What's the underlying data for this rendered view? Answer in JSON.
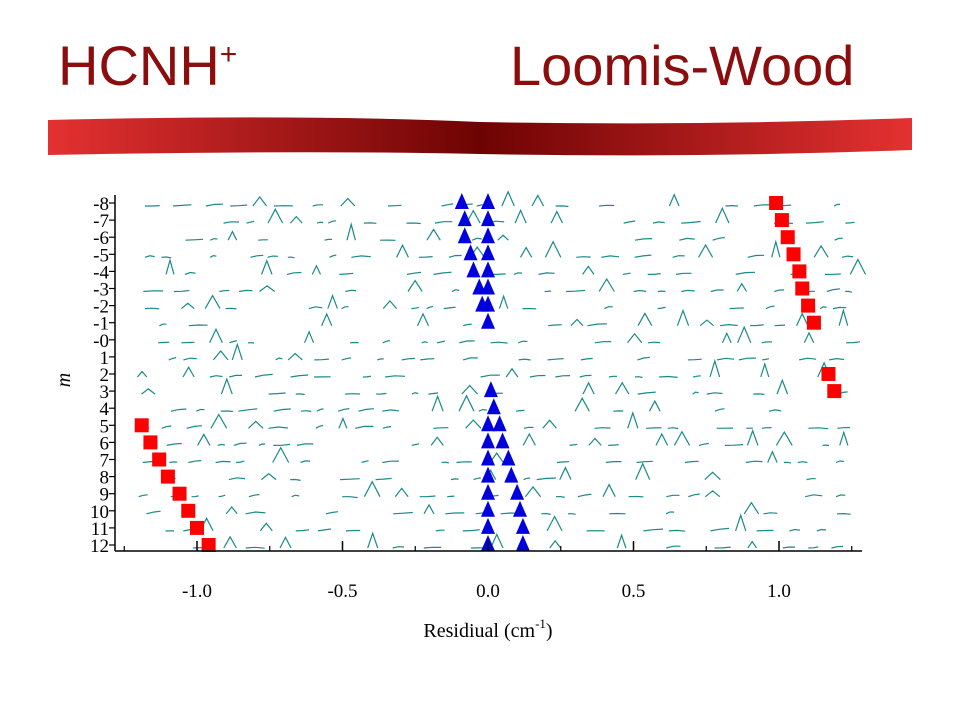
{
  "slide": {
    "title_left_main": "HCNH",
    "title_left_sup": "+",
    "title_right": "Loomis-Wood",
    "accent_color": "#8b0d0d"
  },
  "chart_data": {
    "type": "scatter",
    "title": "",
    "xlabel": "Residiual (cm",
    "xlabel_sup": "-1",
    "xlabel_close": ")",
    "ylabel": "m",
    "xlim": [
      -1.3,
      1.3
    ],
    "x_ticks": [
      -1.0,
      -0.5,
      0.0,
      0.5,
      1.0
    ],
    "x_tick_labels": [
      "-1.0",
      "-0.5",
      "0.0",
      "0.5",
      "1.0"
    ],
    "m_rows": [
      "-8",
      "-7",
      "-6",
      "-5",
      "-4",
      "-3",
      "-2",
      "-1",
      "-0",
      "1",
      "2",
      "3",
      "4",
      "5",
      "6",
      "7",
      "8",
      "9",
      "10",
      "11",
      "12"
    ],
    "background_spectrum_color": "#1a8a8a",
    "series": [
      {
        "marker": "square",
        "color": "#ff0000",
        "points": [
          {
            "m": "-8",
            "x": 0.99
          },
          {
            "m": "-7",
            "x": 1.01
          },
          {
            "m": "-6",
            "x": 1.03
          },
          {
            "m": "-5",
            "x": 1.05
          },
          {
            "m": "-4",
            "x": 1.07
          },
          {
            "m": "-3",
            "x": 1.08
          },
          {
            "m": "-2",
            "x": 1.1
          },
          {
            "m": "-1",
            "x": 1.12
          },
          {
            "m": "2",
            "x": 1.17
          },
          {
            "m": "3",
            "x": 1.19
          }
        ]
      },
      {
        "marker": "square",
        "color": "#ff0000",
        "points": [
          {
            "m": "5",
            "x": -1.19
          },
          {
            "m": "6",
            "x": -1.16
          },
          {
            "m": "7",
            "x": -1.13
          },
          {
            "m": "8",
            "x": -1.1
          },
          {
            "m": "9",
            "x": -1.06
          },
          {
            "m": "10",
            "x": -1.03
          },
          {
            "m": "11",
            "x": -1.0
          },
          {
            "m": "12",
            "x": -0.96
          }
        ]
      },
      {
        "marker": "triangle",
        "color": "#0000dd",
        "points": [
          {
            "m": "-8",
            "x": -0.09
          },
          {
            "m": "-8",
            "x": 0.0
          },
          {
            "m": "-7",
            "x": -0.08
          },
          {
            "m": "-7",
            "x": 0.0
          },
          {
            "m": "-6",
            "x": -0.08
          },
          {
            "m": "-6",
            "x": 0.0
          },
          {
            "m": "-5",
            "x": -0.06
          },
          {
            "m": "-5",
            "x": 0.0
          },
          {
            "m": "-4",
            "x": -0.05
          },
          {
            "m": "-4",
            "x": 0.0
          },
          {
            "m": "-3",
            "x": -0.03
          },
          {
            "m": "-3",
            "x": 0.0
          },
          {
            "m": "-2",
            "x": -0.02
          },
          {
            "m": "-2",
            "x": 0.0
          },
          {
            "m": "-1",
            "x": 0.0
          },
          {
            "m": "3",
            "x": 0.01
          },
          {
            "m": "4",
            "x": 0.02
          },
          {
            "m": "5",
            "x": 0.0
          },
          {
            "m": "5",
            "x": 0.04
          },
          {
            "m": "6",
            "x": 0.0
          },
          {
            "m": "6",
            "x": 0.05
          },
          {
            "m": "7",
            "x": 0.0
          },
          {
            "m": "7",
            "x": 0.07
          },
          {
            "m": "8",
            "x": 0.0
          },
          {
            "m": "8",
            "x": 0.08
          },
          {
            "m": "9",
            "x": 0.0
          },
          {
            "m": "9",
            "x": 0.1
          },
          {
            "m": "10",
            "x": 0.0
          },
          {
            "m": "10",
            "x": 0.11
          },
          {
            "m": "11",
            "x": 0.0
          },
          {
            "m": "11",
            "x": 0.12
          },
          {
            "m": "12",
            "x": 0.0
          },
          {
            "m": "12",
            "x": 0.12
          }
        ]
      }
    ],
    "grid": false,
    "legend": "none"
  }
}
